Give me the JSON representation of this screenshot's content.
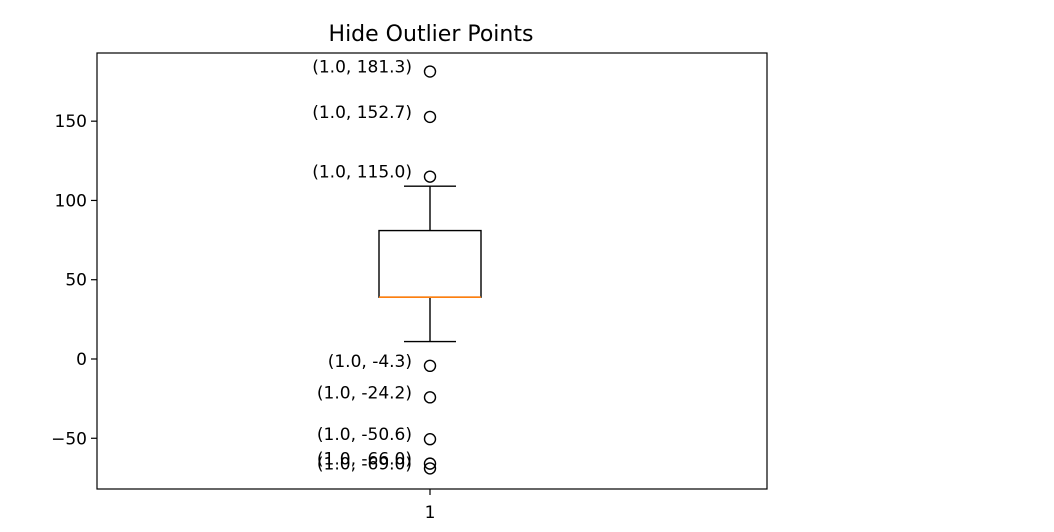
{
  "chart_data": {
    "type": "box",
    "title": "Hide Outlier Points",
    "xlabel": "",
    "ylabel": "",
    "categories": [
      "1"
    ],
    "ylim": [
      -82,
      193
    ],
    "yticks": [
      {
        "value": -50,
        "label": "−50"
      },
      {
        "value": 0,
        "label": "0"
      },
      {
        "value": 50,
        "label": "50"
      },
      {
        "value": 100,
        "label": "100"
      },
      {
        "value": 150,
        "label": "150"
      }
    ],
    "grid": false,
    "box": {
      "x": 1.0,
      "whisker_low": 11,
      "q1": 39,
      "median": 39,
      "q3": 81,
      "whisker_high": 109
    },
    "outliers": [
      {
        "x": 1.0,
        "y": 181.3,
        "label": "(1.0, 181.3)"
      },
      {
        "x": 1.0,
        "y": 152.7,
        "label": "(1.0, 152.7)"
      },
      {
        "x": 1.0,
        "y": 115.0,
        "label": "(1.0, 115.0)"
      },
      {
        "x": 1.0,
        "y": -4.3,
        "label": "(1.0, -4.3)"
      },
      {
        "x": 1.0,
        "y": -24.2,
        "label": "(1.0, -24.2)"
      },
      {
        "x": 1.0,
        "y": -50.6,
        "label": "(1.0, -50.6)"
      },
      {
        "x": 1.0,
        "y": -66.0,
        "label": "(1.0, -66.0)"
      },
      {
        "x": 1.0,
        "y": -69.0,
        "label": "(1.0, -69.0)"
      }
    ],
    "colors": {
      "box": "#000000",
      "median": "#ff7f0e",
      "outlier": "#000000"
    }
  }
}
